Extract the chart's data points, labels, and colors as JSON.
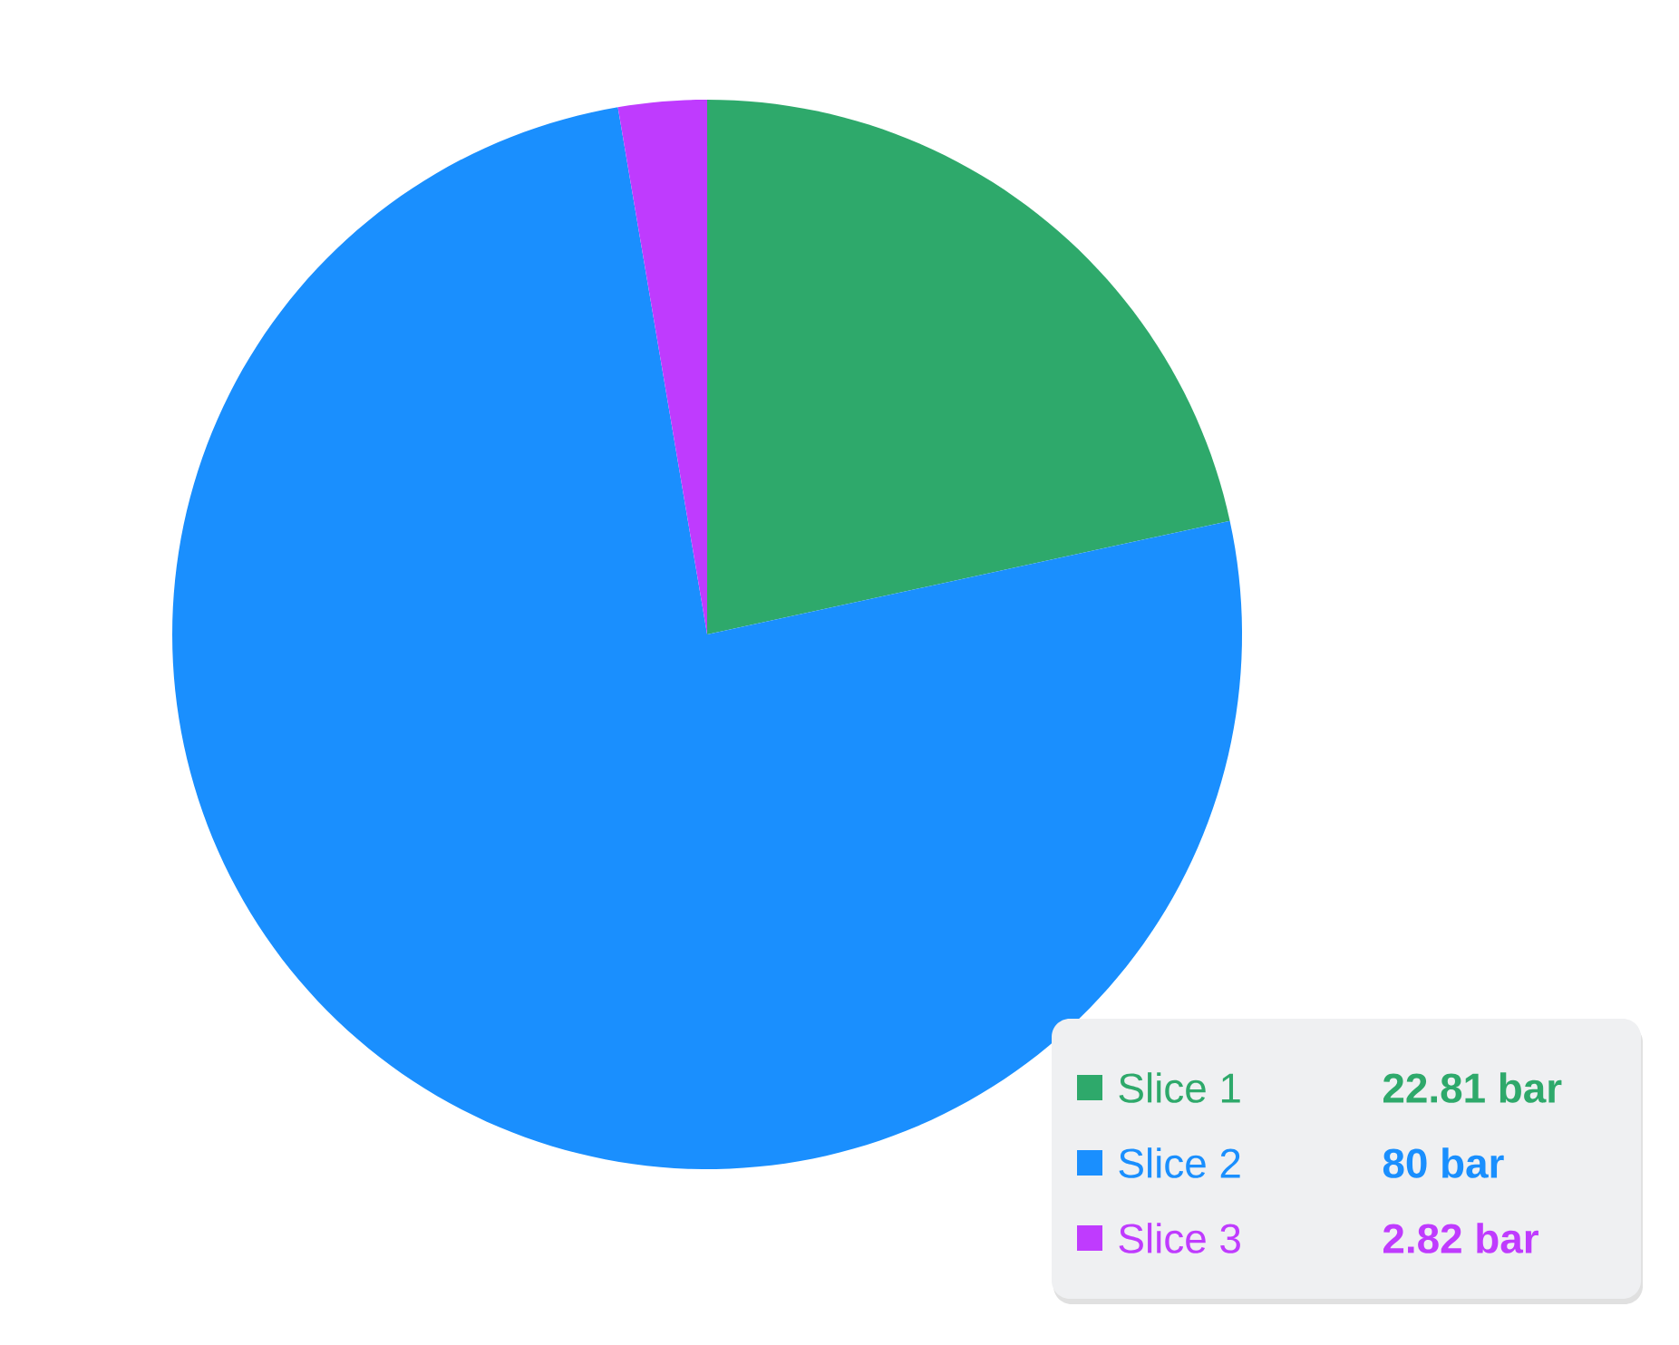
{
  "chart_data": {
    "type": "pie",
    "categories": [
      "Slice 1",
      "Slice 2",
      "Slice 3"
    ],
    "values": [
      22.81,
      80,
      2.82
    ],
    "colors": [
      "#2ea96b",
      "#1a8ffe",
      "#bf3bfe"
    ],
    "value_labels": [
      "22.81 bar",
      "80 bar",
      "2.82 bar"
    ],
    "legend": "bottom right"
  }
}
